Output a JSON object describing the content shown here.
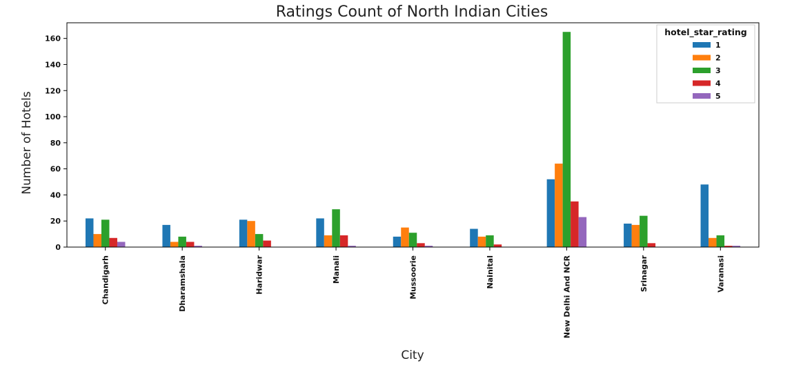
{
  "chart_data": {
    "type": "bar",
    "title": "Ratings Count of North Indian Cities",
    "xlabel": "City",
    "ylabel": "Number of Hotels",
    "ylim": [
      0,
      172
    ],
    "yticks": [
      0,
      20,
      40,
      60,
      80,
      100,
      120,
      140,
      160
    ],
    "grid": false,
    "legend": {
      "title": "hotel_star_rating",
      "placement": "top-right"
    },
    "categories": [
      "Chandigarh",
      "Dharamshala",
      "Haridwar",
      "Manali",
      "Mussoorie",
      "Nainital",
      "New Delhi And NCR",
      "Srinagar",
      "Varanasi"
    ],
    "series": [
      {
        "name": "1",
        "color": "#1f77b4",
        "values": [
          22,
          17,
          21,
          22,
          8,
          14,
          52,
          18,
          48
        ]
      },
      {
        "name": "2",
        "color": "#ff7f0e",
        "values": [
          10,
          4,
          20,
          9,
          15,
          8,
          64,
          17,
          7
        ]
      },
      {
        "name": "3",
        "color": "#2ca02c",
        "values": [
          21,
          8,
          10,
          29,
          11,
          9,
          165,
          24,
          9
        ]
      },
      {
        "name": "4",
        "color": "#d62728",
        "values": [
          7,
          4,
          5,
          9,
          3,
          2,
          35,
          3,
          1
        ]
      },
      {
        "name": "5",
        "color": "#9467bd",
        "values": [
          4,
          1,
          0,
          1,
          1,
          0,
          23,
          0,
          1
        ]
      }
    ]
  }
}
